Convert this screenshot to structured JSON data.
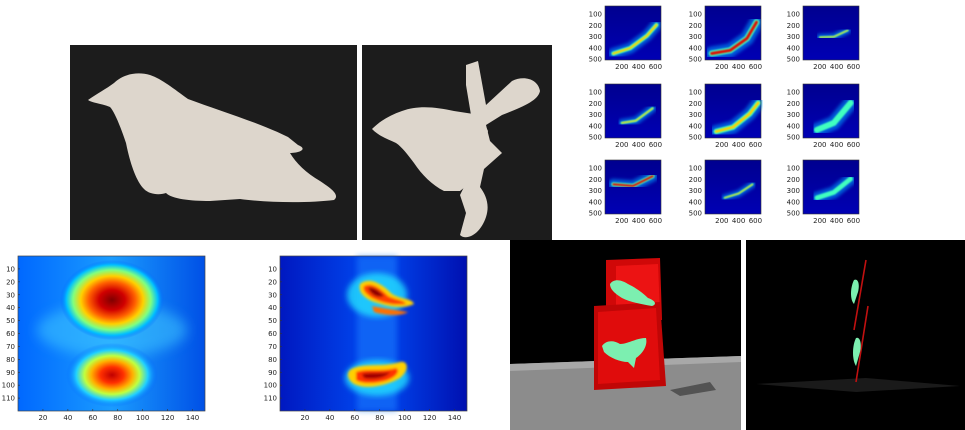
{
  "spectrogram_grid": {
    "y_ticks": [
      "100",
      "200",
      "300",
      "400",
      "500"
    ],
    "x_ticks": [
      "200",
      "400",
      "600"
    ],
    "panels": [
      {
        "id": "r1c1",
        "x": 2,
        "y": 3,
        "pts": [
          [
            0.15,
            0.88
          ],
          [
            0.45,
            0.78
          ],
          [
            0.75,
            0.55
          ],
          [
            0.92,
            0.35
          ]
        ],
        "w": 7,
        "hot": 0.75
      },
      {
        "id": "r1c2",
        "x": 3,
        "y": 3,
        "pts": [
          [
            0.12,
            0.88
          ],
          [
            0.45,
            0.82
          ],
          [
            0.75,
            0.6
          ],
          [
            0.92,
            0.3
          ]
        ],
        "w": 10,
        "hot": 1.0
      },
      {
        "id": "r1c3",
        "x": 4,
        "y": 3,
        "pts": [
          [
            0.3,
            0.58
          ],
          [
            0.55,
            0.57
          ],
          [
            0.8,
            0.45
          ]
        ],
        "w": 3,
        "hot": 0.7
      },
      {
        "id": "r2c1",
        "x": 2,
        "y": 2,
        "pts": [
          [
            0.3,
            0.72
          ],
          [
            0.55,
            0.68
          ],
          [
            0.85,
            0.45
          ]
        ],
        "w": 4,
        "hot": 0.75
      },
      {
        "id": "r2c2",
        "x": 3,
        "y": 2,
        "pts": [
          [
            0.2,
            0.88
          ],
          [
            0.5,
            0.8
          ],
          [
            0.8,
            0.55
          ],
          [
            0.95,
            0.35
          ]
        ],
        "w": 9,
        "hot": 0.9
      },
      {
        "id": "r2c3",
        "x": 4,
        "y": 2,
        "pts": [
          [
            0.25,
            0.85
          ],
          [
            0.55,
            0.72
          ],
          [
            0.85,
            0.35
          ]
        ],
        "w": 10,
        "hot": 0.5
      },
      {
        "id": "r3c1",
        "x": 2,
        "y": 1,
        "pts": [
          [
            0.15,
            0.45
          ],
          [
            0.5,
            0.48
          ],
          [
            0.85,
            0.3
          ]
        ],
        "w": 7,
        "hot": 0.95
      },
      {
        "id": "r3c2",
        "x": 3,
        "y": 1,
        "pts": [
          [
            0.35,
            0.7
          ],
          [
            0.6,
            0.62
          ],
          [
            0.85,
            0.45
          ]
        ],
        "w": 3,
        "hot": 0.7
      },
      {
        "id": "r3c3",
        "x": 4,
        "y": 1,
        "pts": [
          [
            0.25,
            0.7
          ],
          [
            0.55,
            0.6
          ],
          [
            0.85,
            0.35
          ]
        ],
        "w": 8,
        "hot": 0.55
      }
    ]
  },
  "heatmaps": {
    "y_ticks": [
      "10",
      "20",
      "30",
      "40",
      "50",
      "60",
      "70",
      "80",
      "90",
      "100",
      "110"
    ],
    "x_ticks": [
      "20",
      "40",
      "60",
      "80",
      "100",
      "120",
      "140"
    ],
    "xlim": [
      0,
      150
    ],
    "ylim": [
      0,
      120
    ]
  },
  "colors": {
    "photo_bg": "#1c1c1c",
    "silhouette": "#ddd6cc",
    "render_bg": "#000000",
    "floor": "#8c8c8c",
    "plane": "#e01010",
    "mesh": "#7cefb0",
    "jet_low": "#00008f",
    "jet_high": "#800000"
  }
}
